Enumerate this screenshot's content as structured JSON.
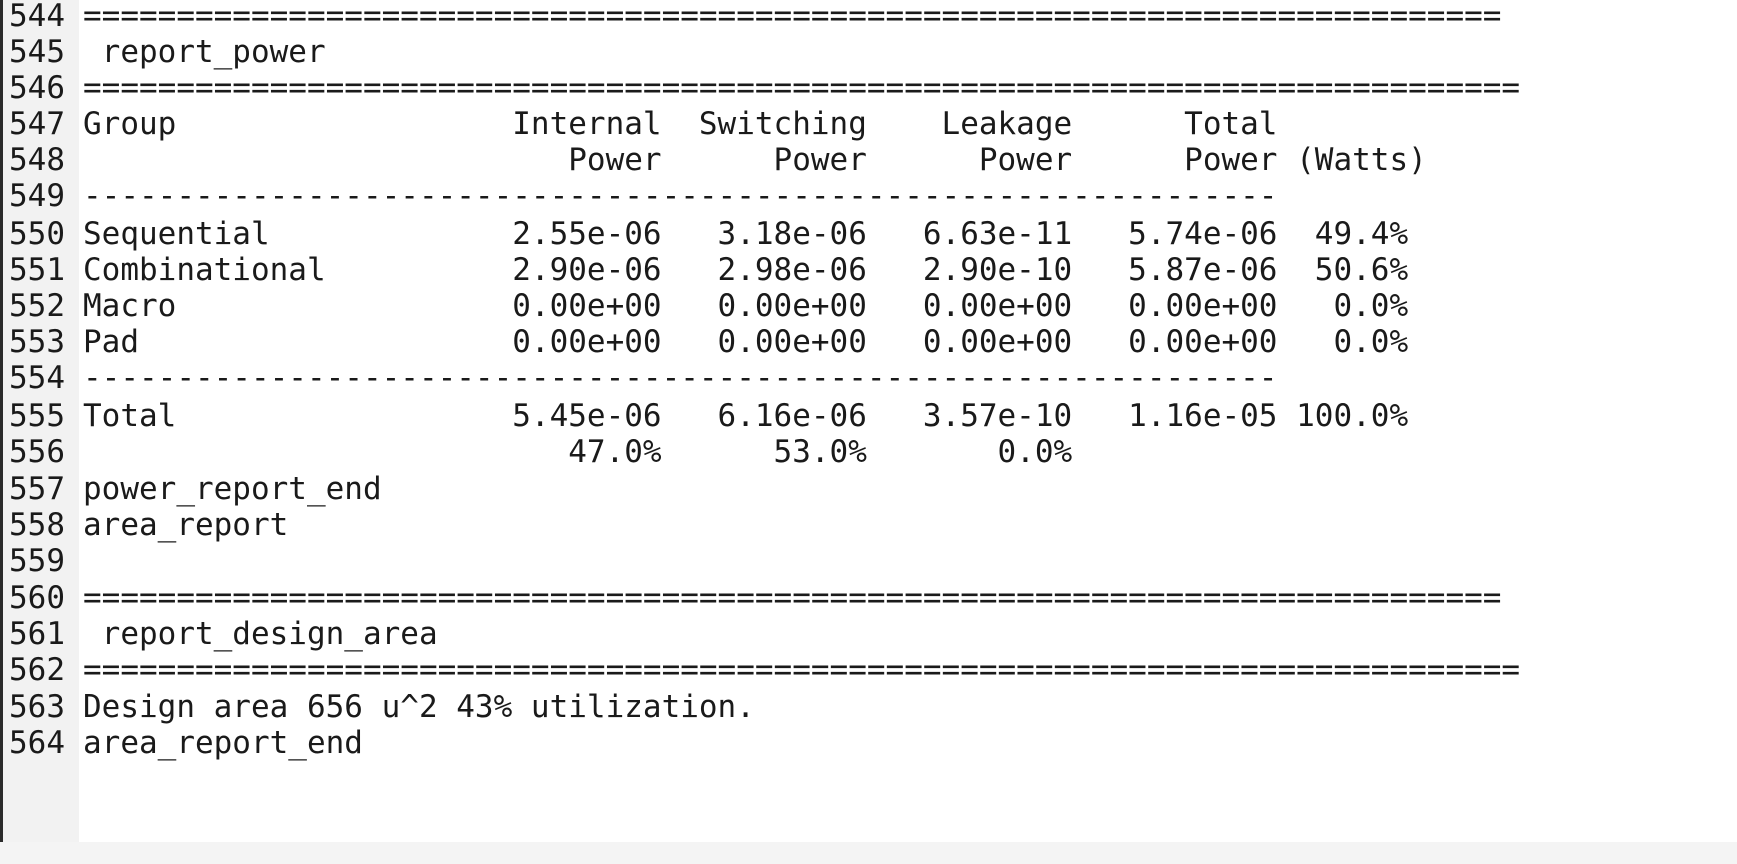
{
  "editor": {
    "lines": [
      {
        "n": "544",
        "text": "============================================================================"
      },
      {
        "n": "545",
        "text": " report_power"
      },
      {
        "n": "546",
        "text": "============================================================================="
      },
      {
        "n": "547",
        "text": "Group                  Internal  Switching    Leakage      Total"
      },
      {
        "n": "548",
        "text": "                          Power      Power      Power      Power (Watts)"
      },
      {
        "n": "549",
        "text": "----------------------------------------------------------------"
      },
      {
        "n": "550",
        "text": "Sequential             2.55e-06   3.18e-06   6.63e-11   5.74e-06  49.4%"
      },
      {
        "n": "551",
        "text": "Combinational          2.90e-06   2.98e-06   2.90e-10   5.87e-06  50.6%"
      },
      {
        "n": "552",
        "text": "Macro                  0.00e+00   0.00e+00   0.00e+00   0.00e+00   0.0%"
      },
      {
        "n": "553",
        "text": "Pad                    0.00e+00   0.00e+00   0.00e+00   0.00e+00   0.0%"
      },
      {
        "n": "554",
        "text": "----------------------------------------------------------------"
      },
      {
        "n": "555",
        "text": "Total                  5.45e-06   6.16e-06   3.57e-10   1.16e-05 100.0%"
      },
      {
        "n": "556",
        "text": "                          47.0%      53.0%       0.0%"
      },
      {
        "n": "557",
        "text": "power_report_end"
      },
      {
        "n": "558",
        "text": "area_report"
      },
      {
        "n": "559",
        "text": ""
      },
      {
        "n": "560",
        "text": "============================================================================"
      },
      {
        "n": "561",
        "text": " report_design_area"
      },
      {
        "n": "562",
        "text": "============================================================================="
      },
      {
        "n": "563",
        "text": "Design area 656 u^2 43% utilization."
      },
      {
        "n": "564",
        "text": "area_report_end"
      }
    ]
  }
}
